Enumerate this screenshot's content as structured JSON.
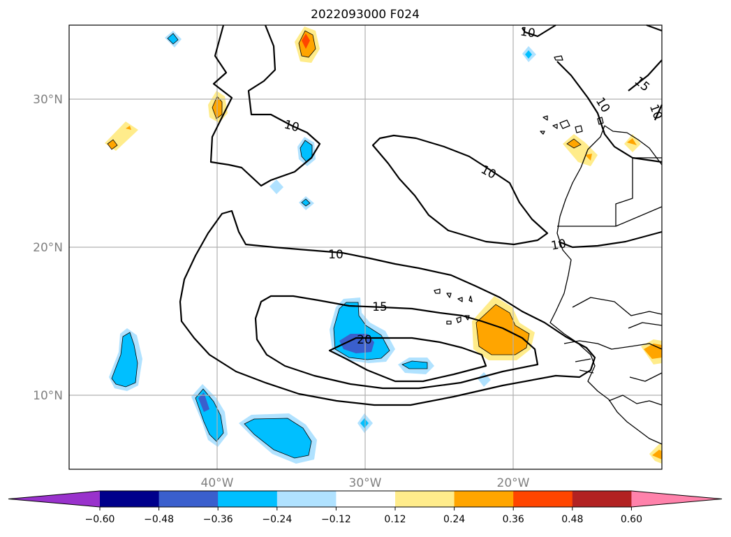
{
  "map": {
    "title": "2022093000 F024",
    "lat_labels": [
      "30°N",
      "20°N",
      "10°N"
    ],
    "lon_labels": [
      "40°W",
      "30°W",
      "20°W"
    ],
    "extent": {
      "lon_min": -50,
      "lon_max": -10,
      "lat_min": 5,
      "lat_max": 35
    },
    "contour_labels": [
      "10",
      "10",
      "10",
      "10",
      "10",
      "10",
      "15",
      "15",
      "20",
      "10"
    ],
    "gridlines": true
  },
  "colorbar": {
    "ticks": [
      "−0.60",
      "−0.48",
      "−0.36",
      "−0.24",
      "−0.12",
      "0.12",
      "0.24",
      "0.36",
      "0.48",
      "0.60"
    ],
    "colors": [
      "#9932cc",
      "#00008b",
      "#3a5fcd",
      "#00bfff",
      "#b0e2ff",
      "#ffffff",
      "#ffec8b",
      "#ffa500",
      "#ff4500",
      "#b22222",
      "#ff82ab"
    ],
    "extend": "both"
  }
}
